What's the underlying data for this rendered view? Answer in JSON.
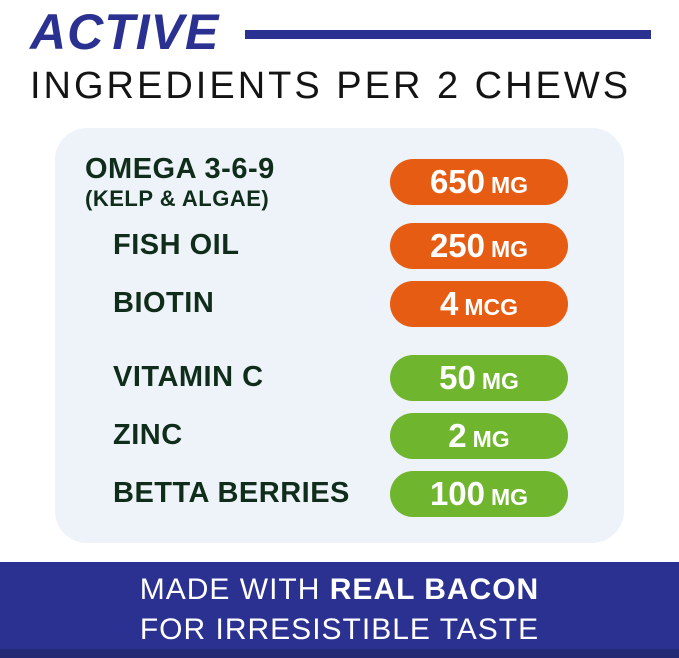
{
  "header": {
    "title": "ACTIVE",
    "subtitle": "INGREDIENTS PER 2 CHEWS"
  },
  "ingredients": [
    {
      "name": "OMEGA 3-6-9",
      "sub": "(KELP & ALGAE)",
      "amount": "650",
      "unit": "MG",
      "badge": "orange"
    },
    {
      "name": "FISH OIL",
      "amount": "250",
      "unit": "MG",
      "badge": "orange"
    },
    {
      "name": "BIOTIN",
      "amount": "4",
      "unit": "MCG",
      "badge": "orange"
    },
    {
      "name": "VITAMIN C",
      "amount": "50",
      "unit": "MG",
      "badge": "green"
    },
    {
      "name": "ZINC",
      "amount": "2",
      "unit": "MG",
      "badge": "green"
    },
    {
      "name": "BETTA BERRIES",
      "amount": "100",
      "unit": "MG",
      "badge": "green"
    }
  ],
  "footer": {
    "line1_prefix": "MADE WITH ",
    "line1_bold": "REAL BACON",
    "line2": "FOR IRRESISTIBLE TASTE"
  },
  "colors": {
    "navy": "#2b3190",
    "orange": "#e65c13",
    "green": "#6fb52d",
    "card_bg": "#edf3f8",
    "label_text": "#0f2d1a"
  }
}
